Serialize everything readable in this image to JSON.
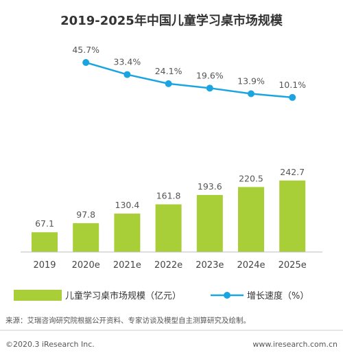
{
  "chart_data": {
    "type": "bar",
    "title": "2019-2025年中国儿童学习桌市场规模",
    "categories": [
      "2019",
      "2020e",
      "2021e",
      "2022e",
      "2023e",
      "2024e",
      "2025e"
    ],
    "series": [
      {
        "name": "儿童学习桌市场规模（亿元）",
        "type": "bar",
        "values": [
          67.1,
          97.8,
          130.4,
          161.8,
          193.6,
          220.5,
          242.7
        ],
        "labels": [
          "67.1",
          "97.8",
          "130.4",
          "161.8",
          "193.6",
          "220.5",
          "242.7"
        ],
        "color": "#a9cf38"
      },
      {
        "name": "增长速度（%）",
        "type": "line",
        "values": [
          null,
          45.7,
          33.4,
          24.1,
          19.6,
          13.9,
          10.1
        ],
        "labels": [
          null,
          "45.7%",
          "33.4%",
          "24.1%",
          "19.6%",
          "13.9%",
          "10.1%"
        ],
        "color": "#1ba5e0"
      }
    ],
    "legend": "bottom",
    "grid": false
  },
  "source": "来源：艾瑞咨询研究院根据公开资料、专家访谈及模型自主测算研究及绘制。",
  "footer": {
    "copyright": "©2020.3 iResearch Inc.",
    "website": "www.iresearch.com.cn"
  }
}
